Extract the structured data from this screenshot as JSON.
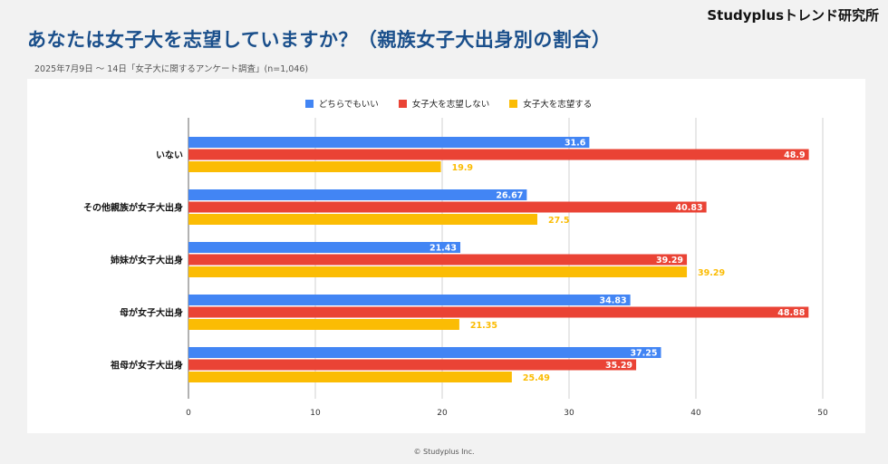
{
  "brand": "Studyplusトレンド研究所",
  "header": {
    "title": "あなたは女子大を志望していますか？（親族女子大出身別の割合）",
    "subtitle": "2025年7月9日 〜 14日「女子大に関するアンケート調査」(n=1,046)"
  },
  "footer": {
    "copyright": "© Studyplus Inc."
  },
  "colors": {
    "blue": "#4285f4",
    "red": "#ea4335",
    "yellow": "#fbbc04",
    "title": "#1a4f8b"
  },
  "chart_data": {
    "type": "bar",
    "orientation": "horizontal",
    "title": "あなたは女子大を志望していますか？（親族女子大出身別の割合）",
    "categories": [
      "いない",
      "その他親族が女子大出身",
      "姉妹が女子大出身",
      "母が女子大出身",
      "祖母が女子大出身"
    ],
    "series": [
      {
        "name": "どちらでもいい",
        "color": "#4285f4",
        "label_inside": true,
        "values": [
          31.6,
          26.67,
          21.43,
          34.83,
          37.25
        ]
      },
      {
        "name": "女子大を志望しない",
        "color": "#ea4335",
        "label_inside": true,
        "values": [
          48.9,
          40.83,
          39.29,
          48.88,
          35.29
        ]
      },
      {
        "name": "女子大を志望する",
        "color": "#fbbc04",
        "label_inside": false,
        "values": [
          19.9,
          27.5,
          39.29,
          21.35,
          25.49
        ]
      }
    ],
    "xlim": [
      0,
      50
    ],
    "xticks": [
      0,
      10,
      20,
      30,
      40,
      50
    ],
    "grid": true,
    "legend_position": "top-center",
    "xlabel": "",
    "ylabel": ""
  }
}
